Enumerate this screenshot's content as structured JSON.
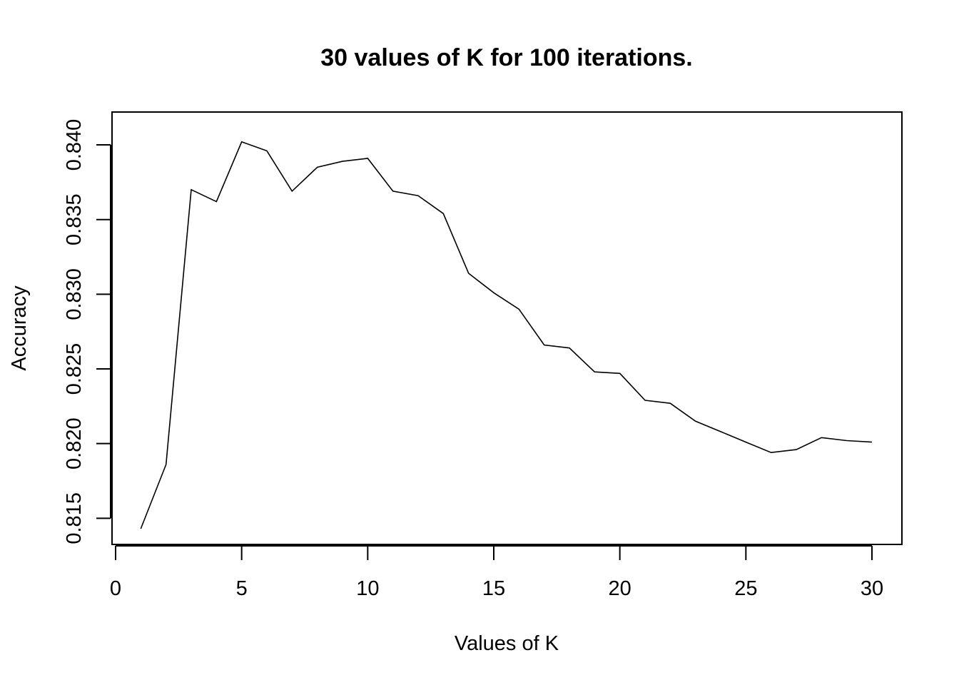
{
  "chart_data": {
    "type": "line",
    "title": "30 values of K for 100 iterations.",
    "xlabel": "Values of K",
    "ylabel": "Accuracy",
    "xlim": [
      0,
      30
    ],
    "ylim": [
      0.8143,
      0.8411
    ],
    "xticks": [
      "0",
      "5",
      "10",
      "15",
      "20",
      "25",
      "30"
    ],
    "yticks": [
      "0.815",
      "0.820",
      "0.825",
      "0.830",
      "0.835",
      "0.840"
    ],
    "grid": false,
    "legend": "none",
    "x": [
      1,
      2,
      3,
      4,
      5,
      6,
      7,
      8,
      9,
      10,
      11,
      12,
      13,
      14,
      15,
      16,
      17,
      18,
      19,
      20,
      21,
      22,
      23,
      24,
      25,
      26,
      27,
      28,
      29,
      30
    ],
    "y": [
      0.8143,
      0.8186,
      0.837,
      0.8362,
      0.8402,
      0.8396,
      0.8369,
      0.8385,
      0.8389,
      0.8391,
      0.8369,
      0.8366,
      0.8354,
      0.8314,
      0.8301,
      0.829,
      0.8266,
      0.8264,
      0.8248,
      0.8247,
      0.8229,
      0.8227,
      0.8215,
      0.8208,
      0.8201,
      0.8194,
      0.8196,
      0.8204,
      0.8202,
      0.8201
    ],
    "color": "#000000"
  }
}
